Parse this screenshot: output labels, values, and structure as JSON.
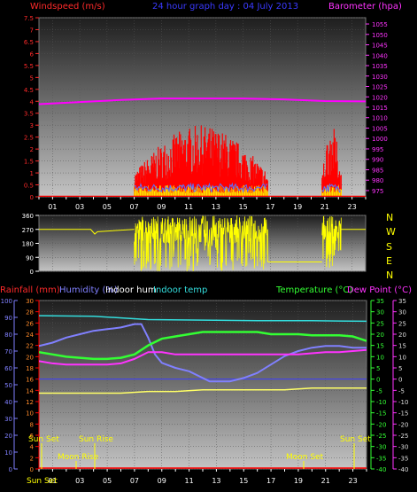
{
  "header": {
    "wind_label": "Windspeed (m/s)",
    "title": "24 hour graph day : 04 July 2013",
    "baro_label": "Barometer (hpa)"
  },
  "compass": [
    "N",
    "W",
    "S",
    "E",
    "N"
  ],
  "bottom_header": {
    "rain": "Rainfall (mm)",
    "humidity": "Humidity (%)",
    "indoor_hum": "Indoor hum",
    "indoor_temp": "Indoor temp",
    "temperature": "Temperature (°C)",
    "dewpoint": "Dew Point (°C)"
  },
  "astro": {
    "sun_set_left": "Sun Set",
    "sun_rise": "Sun Rise",
    "moon_rise": "Moon Rise",
    "moon_set": "Moon Set",
    "sun_set_right": "Sun Set",
    "sun_set_axis": "Sun Set"
  },
  "colors": {
    "wind": "#ff0000",
    "gust": "#ffff00",
    "wind_avg": "#5c6cff",
    "baro": "#ff00ff",
    "direction": "#ffff00",
    "temperature": "#33ff33",
    "dewpoint": "#ff33ff",
    "humidity": "#8080ff",
    "indoor_temp": "#33dddd",
    "indoor_hum": "#ffff66",
    "rain": "#ff0000"
  },
  "chart_data": [
    {
      "type": "line",
      "title": "24 hour graph day : 04 July 2013",
      "ylabel": "Windspeed (m/s)",
      "y2label": "Barometer (hpa)",
      "x_ticks": [
        "01",
        "03",
        "05",
        "07",
        "09",
        "11",
        "13",
        "15",
        "17",
        "19",
        "21",
        "23"
      ],
      "xlim": [
        0,
        24
      ],
      "ylim": [
        0,
        7.5
      ],
      "y_ticks": [
        0,
        0.5,
        1,
        1.5,
        2,
        2.5,
        3,
        3.5,
        4,
        4.5,
        5,
        5.5,
        6,
        6.5,
        7,
        7.5
      ],
      "y2lim": [
        972,
        1058
      ],
      "y2_ticks": [
        975,
        980,
        985,
        990,
        995,
        1000,
        1005,
        1010,
        1015,
        1020,
        1025,
        1030,
        1035,
        1040,
        1045,
        1050,
        1055
      ],
      "barometer": {
        "x": [
          0,
          3,
          6,
          9,
          12,
          15,
          18,
          21,
          24
        ],
        "y": [
          1016.5,
          1017.5,
          1018.5,
          1019.2,
          1019.2,
          1019.2,
          1018.8,
          1018,
          1017.8
        ]
      },
      "wind_active": [
        [
          7.0,
          16.8
        ],
        [
          20.8,
          22.2
        ]
      ],
      "wind_peak": 3.0,
      "gust_peak": 0.5
    },
    {
      "type": "line",
      "ylabel": "",
      "xlim": [
        0,
        24
      ],
      "ylim": [
        0,
        360
      ],
      "y_ticks": [
        0,
        90,
        180,
        270,
        360
      ],
      "direction": {
        "x": [
          0,
          3.8,
          4.1,
          4.3,
          7.0
        ],
        "y": [
          270,
          270,
          240,
          255,
          270
        ]
      },
      "direction_active": [
        [
          7.0,
          16.8
        ],
        [
          20.8,
          22.2
        ]
      ],
      "direction_after": {
        "x": [
          16.8,
          20.8
        ],
        "y": [
          60,
          60
        ],
        "tail_x": [
          22.2,
          24
        ],
        "tail_y": [
          270,
          270
        ]
      }
    },
    {
      "type": "line",
      "x_ticks": [
        "01",
        "03",
        "05",
        "07",
        "09",
        "11",
        "13",
        "15",
        "17",
        "19",
        "21",
        "23"
      ],
      "xlim": [
        0,
        24
      ],
      "rain_axis": {
        "ylim": [
          0,
          30
        ],
        "ticks": [
          0,
          2,
          4,
          6,
          8,
          10,
          12,
          14,
          16,
          18,
          20,
          22,
          24,
          26,
          28,
          30
        ]
      },
      "humidity_axis": {
        "ylim": [
          0,
          100
        ],
        "ticks": [
          0,
          10,
          20,
          30,
          40,
          50,
          60,
          70,
          80,
          90,
          100
        ]
      },
      "temp_axis": {
        "ylim": [
          -40,
          35
        ],
        "ticks": [
          -40,
          -35,
          -30,
          -25,
          -20,
          -15,
          -10,
          -5,
          0,
          5,
          10,
          15,
          20,
          25,
          30,
          35
        ]
      },
      "series": [
        {
          "name": "Humidity (%)",
          "axis": "humidity",
          "x": [
            0,
            1,
            2,
            3,
            4,
            5,
            6,
            7,
            7.5,
            8,
            8.5,
            9,
            10,
            11,
            12,
            12.5,
            13,
            14,
            15,
            16,
            17,
            18,
            19,
            20,
            21,
            22,
            23,
            24
          ],
          "y": [
            73,
            75,
            78,
            80,
            82,
            83,
            84,
            86,
            86,
            78,
            68,
            63,
            60,
            58,
            54,
            52,
            52,
            52,
            54,
            57,
            62,
            67,
            70,
            72,
            73,
            73,
            72,
            72
          ]
        },
        {
          "name": "Temperature (°C)",
          "axis": "temp",
          "x": [
            0,
            1,
            2,
            3,
            4,
            5,
            6,
            7,
            8,
            9,
            10,
            11,
            12,
            13,
            14,
            15,
            16,
            17,
            18,
            19,
            20,
            21,
            22,
            23,
            24
          ],
          "y": [
            12,
            11,
            10,
            9.5,
            9,
            9,
            9.5,
            11,
            15,
            18,
            19,
            20,
            21,
            21,
            21,
            21,
            21,
            20,
            20,
            20,
            19.5,
            19.5,
            19.5,
            19,
            17
          ]
        },
        {
          "name": "Dew Point (°C)",
          "axis": "temp",
          "x": [
            0,
            1,
            2,
            3,
            4,
            5,
            6,
            7,
            8,
            9,
            10,
            11,
            12,
            13,
            14,
            15,
            16,
            17,
            18,
            19,
            20,
            21,
            22,
            23,
            24
          ],
          "y": [
            8,
            7,
            6.5,
            6.5,
            6.5,
            6.5,
            7,
            9,
            12,
            12,
            11,
            11,
            11,
            11,
            11,
            11,
            11,
            11,
            11,
            11,
            11.5,
            12,
            12,
            12.5,
            13
          ]
        },
        {
          "name": "Indoor temp",
          "axis": "rain",
          "x": [
            0,
            4,
            8,
            12,
            16,
            20,
            24
          ],
          "y": [
            27.3,
            27.2,
            26.6,
            26.5,
            26.4,
            26.4,
            26.3
          ]
        },
        {
          "name": "Indoor hum",
          "axis": "humidity",
          "x": [
            0,
            4,
            6,
            8,
            10,
            12,
            14,
            16,
            18,
            20,
            22,
            24
          ],
          "y": [
            45,
            45,
            45,
            46,
            46,
            47,
            47,
            47,
            47,
            48,
            48,
            48
          ]
        }
      ],
      "dewpoint_ref": 0
    }
  ]
}
